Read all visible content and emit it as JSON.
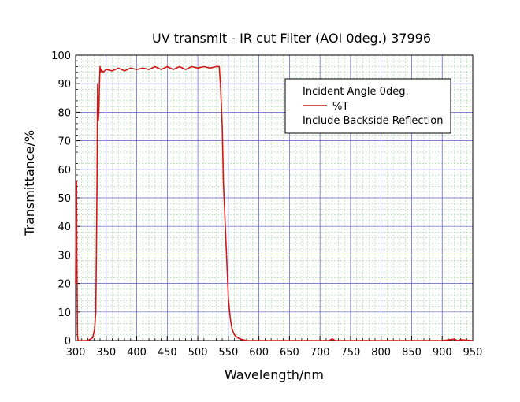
{
  "chart_data": {
    "type": "line",
    "title": "UV transmit - IR cut Filter (AOI 0deg.)  37996",
    "xlabel": "Wavelength/nm",
    "ylabel": "Transmittance/%",
    "xlim": [
      300,
      950
    ],
    "ylim": [
      0,
      100
    ],
    "xticks": [
      "300",
      "350",
      "400",
      "450",
      "500",
      "550",
      "600",
      "650",
      "700",
      "750",
      "800",
      "850",
      "900",
      "950"
    ],
    "yticks": [
      "0",
      "10",
      "20",
      "30",
      "40",
      "50",
      "60",
      "70",
      "80",
      "90",
      "100"
    ],
    "grid": true,
    "legend": {
      "placement": "top-right",
      "header": "Incident Angle 0deg.",
      "footer": "Include Backside Reflection"
    },
    "series": [
      {
        "name": "%T",
        "color": "#d01818",
        "x": [
          300,
          301,
          301.5,
          302,
          303,
          304,
          305,
          306,
          310,
          320,
          328,
          331,
          333,
          334,
          335,
          336,
          337,
          338,
          339,
          340,
          341,
          342,
          345,
          350,
          360,
          370,
          380,
          390,
          400,
          410,
          420,
          430,
          440,
          450,
          460,
          470,
          480,
          490,
          500,
          510,
          520,
          530,
          535,
          537,
          540,
          542,
          545,
          548,
          550,
          553,
          556,
          560,
          565,
          570,
          580,
          600,
          650,
          700,
          715,
          720,
          725,
          750,
          800,
          850,
          900,
          920,
          925,
          930,
          950
        ],
        "y": [
          20,
          56,
          56,
          30,
          2,
          0,
          0,
          0,
          0,
          0,
          1,
          4,
          10,
          30,
          55,
          90,
          77,
          80,
          90,
          96,
          94,
          95,
          94,
          95,
          94.5,
          95.5,
          94.5,
          95.5,
          95,
          95.5,
          95,
          96,
          95,
          96,
          95,
          96,
          95,
          96,
          95.5,
          96,
          95.5,
          96,
          96,
          90,
          75,
          55,
          40,
          25,
          15,
          8,
          4,
          2,
          1,
          0.5,
          0,
          0,
          0,
          0,
          0,
          0.6,
          0,
          0,
          0,
          0,
          0,
          0.5,
          0,
          0.3,
          0
        ]
      }
    ]
  }
}
